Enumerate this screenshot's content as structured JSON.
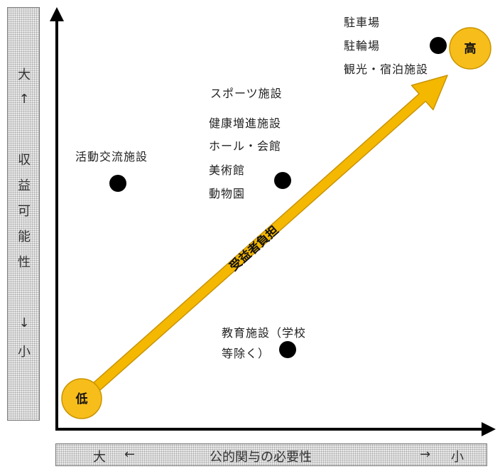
{
  "y_axis": {
    "top": "大",
    "up_arrow": "↑",
    "chars": [
      "収",
      "益",
      "可",
      "能",
      "性"
    ],
    "down_arrow": "↓",
    "bottom": "小"
  },
  "x_axis": {
    "left": "大",
    "left_arrow": "←",
    "label": "公的関与の必要性",
    "right_arrow": "→",
    "right": "小"
  },
  "arrow_label": "受益者負担",
  "start_badge": "低",
  "end_badge": "高",
  "groups": {
    "g1": [
      "活動交流施設"
    ],
    "g2": [
      "スポーツ施設",
      "健康増進施設",
      "ホール・会館",
      "美術館",
      "動物園"
    ],
    "g3": [
      "駐車場",
      "駐輪場",
      "観光・宿泊施設"
    ],
    "g4": [
      "教育施設（学校",
      "等除く）"
    ]
  },
  "colors": {
    "arrow_fill": "#f5b800",
    "arrow_stroke": "#c99400",
    "badge_fill": "#f7bd1a",
    "axis": "#000000",
    "dot": "#000000"
  }
}
